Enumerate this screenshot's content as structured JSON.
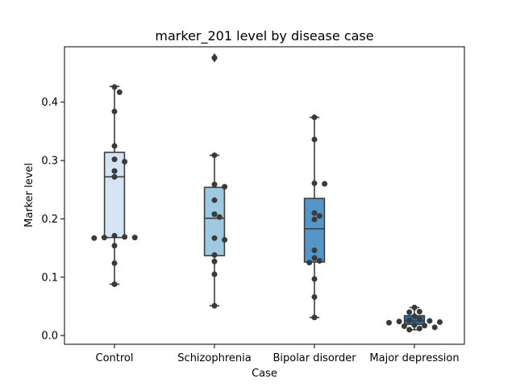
{
  "chart_data": {
    "type": "box",
    "title": "marker_201 level by disease case",
    "xlabel": "Case",
    "ylabel": "Marker level",
    "ylim": [
      -0.015,
      0.495
    ],
    "yticks": [
      "0.0",
      "0.1",
      "0.2",
      "0.3",
      "0.4"
    ],
    "yticks_values": [
      0.0,
      0.1,
      0.2,
      0.3,
      0.4
    ],
    "categories": [
      "Control",
      "Schizophrenia",
      "Bipolar disorder",
      "Major depression"
    ],
    "colors": [
      "#d4e4f4",
      "#9ecae1",
      "#5596c8",
      "#2a6ea8"
    ],
    "boxes": [
      {
        "whisker_low": 0.088,
        "q1": 0.168,
        "median": 0.272,
        "q3": 0.314,
        "whisker_high": 0.427,
        "outliers": []
      },
      {
        "whisker_low": 0.051,
        "q1": 0.137,
        "median": 0.201,
        "q3": 0.254,
        "whisker_high": 0.309,
        "outliers": [
          0.476
        ]
      },
      {
        "whisker_low": 0.031,
        "q1": 0.126,
        "median": 0.183,
        "q3": 0.235,
        "whisker_high": 0.374,
        "outliers": []
      },
      {
        "whisker_low": 0.01,
        "q1": 0.019,
        "median": 0.025,
        "q3": 0.034,
        "whisker_high": 0.048,
        "outliers": []
      }
    ],
    "points": [
      [
        0.426,
        0.417,
        0.384,
        0.325,
        0.302,
        0.298,
        0.282,
        0.272,
        0.171,
        0.169,
        0.168,
        0.168,
        0.167,
        0.154,
        0.124,
        0.088
      ],
      [
        0.476,
        0.309,
        0.259,
        0.255,
        0.232,
        0.208,
        0.203,
        0.167,
        0.164,
        0.138,
        0.127,
        0.105,
        0.051
      ],
      [
        0.374,
        0.336,
        0.261,
        0.26,
        0.21,
        0.205,
        0.199,
        0.146,
        0.133,
        0.128,
        0.125,
        0.097,
        0.066,
        0.031
      ],
      [
        0.048,
        0.041,
        0.04,
        0.033,
        0.028,
        0.026,
        0.025,
        0.024,
        0.023,
        0.022,
        0.018,
        0.017,
        0.016,
        0.014,
        0.012,
        0.01
      ]
    ]
  }
}
